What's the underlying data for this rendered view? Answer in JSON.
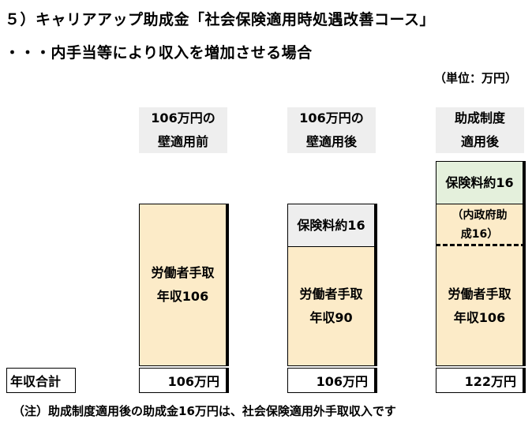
{
  "title": "５）キャリアアップ助成金「社会保険適用時処遇改善コース」",
  "subtitle": "・・・内手当等により収入を増加させる場合",
  "unit": "（単位：万円）",
  "columns": [
    {
      "header": [
        "106万円の",
        "壁適用前"
      ],
      "worker": [
        "労働者手取",
        "年収106"
      ],
      "total": "106万円"
    },
    {
      "header": [
        "106万円の",
        "壁適用後"
      ],
      "premium": "保険料約16",
      "worker": [
        "労働者手取",
        "年収90"
      ],
      "total": "106万円"
    },
    {
      "header": [
        "助成制度",
        "適用後"
      ],
      "premium": "保険料約16",
      "subsidy": [
        "（内政府助",
        "成16）"
      ],
      "worker": [
        "労働者手取",
        "年収106"
      ],
      "total": "122万円"
    }
  ],
  "row_label": "年収合計",
  "note": "（注）助成制度適用後の助成金16万円は、社会保険適用外手取収入です",
  "colors": {
    "worker": "#fcebc8",
    "premium_gray": "#eeeeee",
    "premium_green": "#e4f0dc",
    "header_bg": "#eeeeee"
  }
}
